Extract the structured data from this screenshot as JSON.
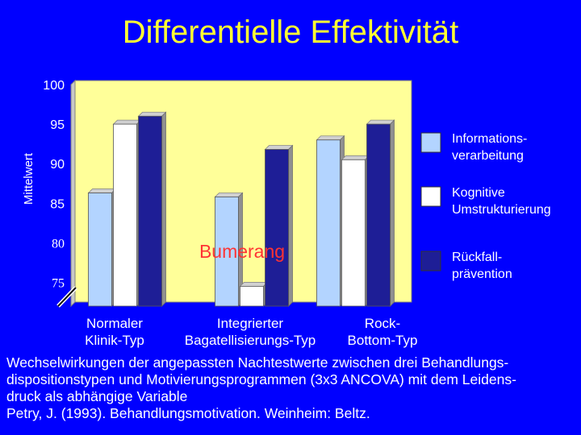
{
  "slide": {
    "title": "Differentielle Effektivität",
    "caption": [
      "Wechselwirkungen der angepassten Nachtestwerte zwischen drei Behandlungs-",
      "dispositionstypen und Motivierungsprogrammen (3x3 ANCOVA) mit dem Leidens-",
      "druck  als abhängige Variable",
      "Petry, J. (1993). Behandlungsmotivation. Weinheim: Beltz."
    ]
  },
  "chart_data": {
    "type": "bar",
    "title": "Differentielle Effektivität",
    "ylabel": "Mittelwert",
    "xlabel": "",
    "ylim": [
      72,
      100
    ],
    "yticks": [
      75,
      80,
      85,
      90,
      95,
      100
    ],
    "ytick_labels": [
      "75",
      "80",
      "85",
      "90",
      "95",
      "100"
    ],
    "categories": [
      "Normaler Klinik-Typ",
      "Integrierter Bagatellisierungs-Typ",
      "Rock-Bottom-Typ"
    ],
    "category_label_lines": [
      [
        "Normaler",
        "Klinik-Typ"
      ],
      [
        "Integrierter",
        "Bagatellisierungs-Typ"
      ],
      [
        "Rock-",
        "Bottom-Typ"
      ]
    ],
    "series": [
      {
        "name": "Informationsverarbeitung",
        "label_lines": [
          "Informations-",
          "verarbeitung"
        ],
        "color": "#B3D4FF",
        "values": [
          86.3,
          85.8,
          93
        ]
      },
      {
        "name": "Kognitive Umstrukturierung",
        "label_lines": [
          "Kognitive",
          "Umstrukturierung"
        ],
        "color": "#FFFFFF",
        "values": [
          95,
          74.5,
          90.5
        ]
      },
      {
        "name": "Rückfallprävention",
        "label_lines": [
          "Rückfall-",
          "prävention"
        ],
        "color": "#1E1E96",
        "values": [
          96,
          91.8,
          95
        ]
      }
    ],
    "annotation": "Bumerang",
    "legend_position": "right",
    "grid": false,
    "plot_background": "#FFFF99"
  }
}
